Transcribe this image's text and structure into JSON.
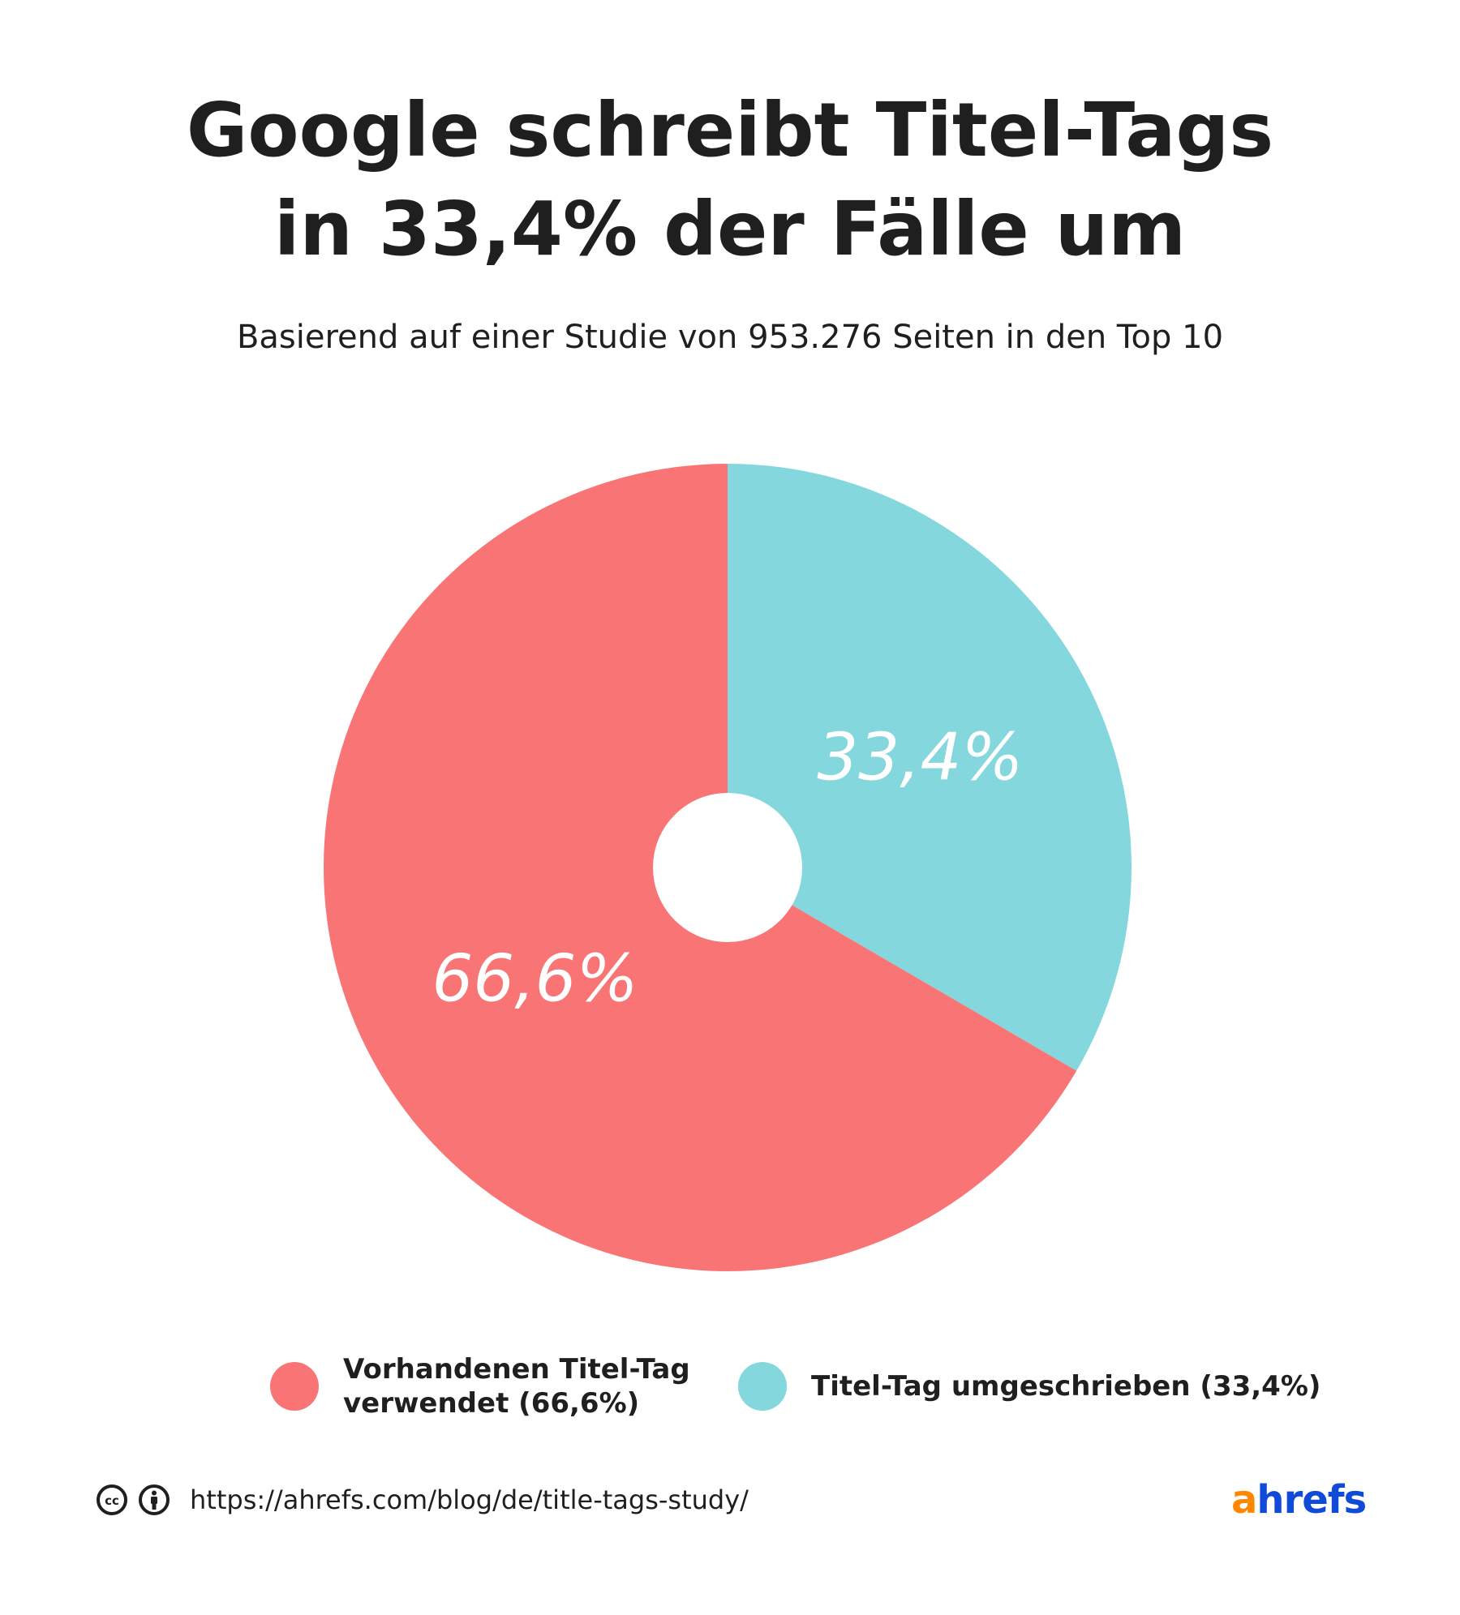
{
  "chart_data": {
    "type": "pie",
    "title_lines": [
      "Google schreibt Titel-Tags",
      "in 33,4% der Fälle um"
    ],
    "subtitle": "Basierend auf einer Studie von 953.276 Seiten in den Top 10",
    "slices": [
      {
        "label": "Titel-Tag umgeschrieben (33,4%)",
        "value": 33.4,
        "data_label": "33,4%",
        "color": "#85D7DE"
      },
      {
        "label": "Vorhandenen Titel-Tag verwendet (66,6%)",
        "value": 66.6,
        "data_label": "66,6%",
        "color": "#F97575"
      }
    ],
    "style": "donut",
    "legend_position": "bottom"
  },
  "legend": {
    "items": [
      {
        "label": "Vorhandenen Titel-Tag verwendet (66,6%)",
        "color": "#F97575"
      },
      {
        "label": "Titel-Tag umgeschrieben (33,4%)",
        "color": "#85D7DE"
      }
    ]
  },
  "footer": {
    "url": "https://ahrefs.com/blog/de/title-tags-study/",
    "license_icons": [
      "cc-icon",
      "attribution-icon"
    ],
    "brand": {
      "prefix": "a",
      "rest": "hrefs",
      "prefix_color": "#FF8800",
      "rest_color": "#0F4BD8"
    }
  }
}
